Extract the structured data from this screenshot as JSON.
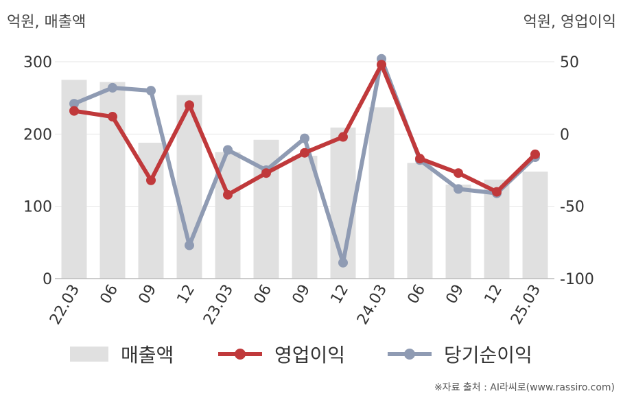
{
  "units": {
    "left": "억원, 매출액",
    "right": "억원, 영업이익"
  },
  "source": "※자료 출처 : AI라씨로(www.rassiro.com)",
  "colors": {
    "bar": "#e0e0e0",
    "operating": "#c0393b",
    "net": "#8f9bb3",
    "grid": "#e6e6e6",
    "axis": "#bbbbbb"
  },
  "chart_data": {
    "type": "bar",
    "categories": [
      "22.03",
      "06",
      "09",
      "12",
      "23.03",
      "06",
      "09",
      "12",
      "24.03",
      "06",
      "09",
      "12",
      "25.03"
    ],
    "y_left": {
      "ticks": [
        0,
        100,
        200,
        300
      ],
      "range": [
        0,
        300
      ]
    },
    "y_right": {
      "ticks": [
        -100,
        -50,
        0,
        50
      ],
      "range": [
        -100,
        50
      ]
    },
    "grid": true,
    "legend_position": "bottom",
    "series": [
      {
        "name": "매출액",
        "type": "bar",
        "axis": "left",
        "values": [
          275,
          272,
          188,
          254,
          175,
          192,
          170,
          209,
          237,
          160,
          130,
          137,
          148
        ]
      },
      {
        "name": "영업이익",
        "type": "line",
        "axis": "right",
        "values": [
          16,
          12,
          -32,
          20,
          -42,
          -27,
          -13,
          -2,
          48,
          -17,
          -27,
          -40,
          -14
        ]
      },
      {
        "name": "당기순이익",
        "type": "line",
        "axis": "right",
        "values": [
          21,
          32,
          30,
          -77,
          -11,
          -25,
          -3,
          -89,
          52,
          -18,
          -38,
          -41,
          -16
        ]
      }
    ]
  }
}
